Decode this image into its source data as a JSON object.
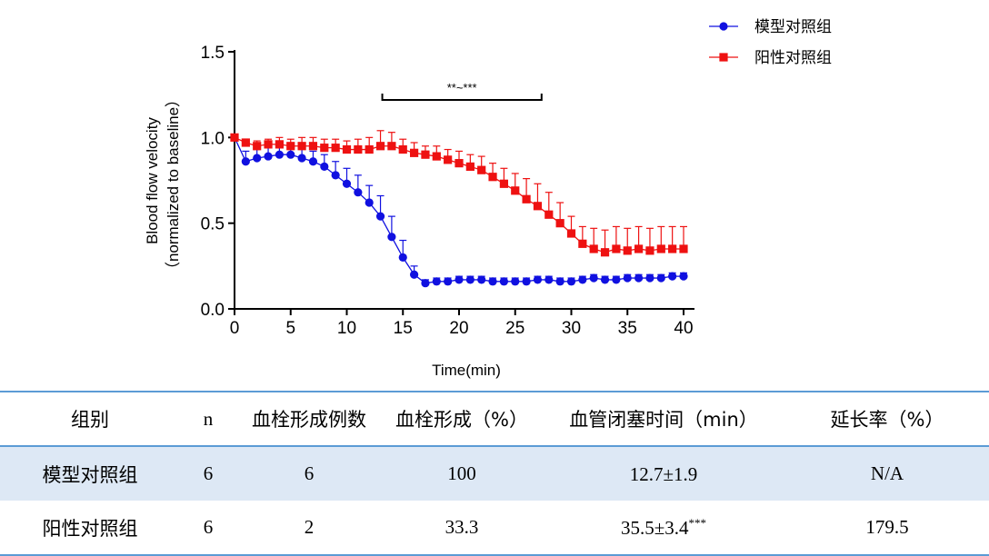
{
  "chart_data": {
    "type": "line",
    "xlabel": "Time(min)",
    "ylabel": "Blood flow velocity",
    "ylabel2": "（normalized to baseline）",
    "xlim": [
      0,
      40
    ],
    "ylim": [
      0,
      1.5
    ],
    "xticks": [
      0,
      5,
      10,
      15,
      20,
      25,
      30,
      35,
      40
    ],
    "yticks": [
      0.0,
      0.5,
      1.0,
      1.5
    ],
    "ytick_labels": [
      "0.0",
      "0.5",
      "1.0",
      "1.5"
    ],
    "legend_position": "top-right",
    "annotation": {
      "text": "**~***",
      "x_start": 13,
      "x_end": 28,
      "y": 1.23
    },
    "x": [
      0,
      1,
      2,
      3,
      4,
      5,
      6,
      7,
      8,
      9,
      10,
      11,
      12,
      13,
      14,
      15,
      16,
      17,
      18,
      19,
      20,
      21,
      22,
      23,
      24,
      25,
      26,
      27,
      28,
      29,
      30,
      31,
      32,
      33,
      34,
      35,
      36,
      37,
      38,
      39,
      40
    ],
    "series": [
      {
        "name": "模型对照组",
        "color": "#1010e0",
        "marker": "circle",
        "values": [
          1.0,
          0.86,
          0.88,
          0.89,
          0.9,
          0.9,
          0.88,
          0.86,
          0.83,
          0.78,
          0.73,
          0.68,
          0.62,
          0.54,
          0.42,
          0.3,
          0.2,
          0.15,
          0.16,
          0.16,
          0.17,
          0.17,
          0.17,
          0.16,
          0.16,
          0.16,
          0.16,
          0.17,
          0.17,
          0.16,
          0.16,
          0.17,
          0.18,
          0.17,
          0.17,
          0.18,
          0.18,
          0.18,
          0.18,
          0.19,
          0.19
        ],
        "errors": [
          0.0,
          0.06,
          0.05,
          0.05,
          0.05,
          0.05,
          0.06,
          0.06,
          0.07,
          0.08,
          0.09,
          0.1,
          0.1,
          0.12,
          0.12,
          0.1,
          0.05,
          0.02,
          0.02,
          0.02,
          0.02,
          0.02,
          0.02,
          0.02,
          0.02,
          0.02,
          0.02,
          0.02,
          0.02,
          0.02,
          0.02,
          0.02,
          0.02,
          0.02,
          0.02,
          0.02,
          0.02,
          0.02,
          0.02,
          0.02,
          0.02
        ]
      },
      {
        "name": "阳性对照组",
        "color": "#ee1111",
        "marker": "square",
        "values": [
          1.0,
          0.97,
          0.95,
          0.96,
          0.96,
          0.95,
          0.95,
          0.95,
          0.94,
          0.94,
          0.93,
          0.93,
          0.93,
          0.95,
          0.95,
          0.93,
          0.91,
          0.9,
          0.89,
          0.87,
          0.85,
          0.83,
          0.81,
          0.77,
          0.73,
          0.69,
          0.64,
          0.6,
          0.55,
          0.5,
          0.44,
          0.38,
          0.35,
          0.33,
          0.35,
          0.34,
          0.35,
          0.34,
          0.35,
          0.35,
          0.35
        ],
        "errors": [
          0.0,
          0.02,
          0.03,
          0.03,
          0.04,
          0.04,
          0.05,
          0.05,
          0.05,
          0.05,
          0.05,
          0.06,
          0.07,
          0.09,
          0.08,
          0.06,
          0.06,
          0.05,
          0.06,
          0.06,
          0.07,
          0.07,
          0.08,
          0.08,
          0.09,
          0.1,
          0.12,
          0.13,
          0.13,
          0.12,
          0.1,
          0.1,
          0.12,
          0.13,
          0.13,
          0.13,
          0.13,
          0.13,
          0.13,
          0.13,
          0.13
        ]
      }
    ]
  },
  "table": {
    "headers": [
      "组别",
      "n",
      "血栓形成例数",
      "血栓形成（%）",
      "血管闭塞时间（min）",
      "延长率（%）"
    ],
    "rows": [
      {
        "group": "模型对照组",
        "n": "6",
        "thrombus_count": "6",
        "thrombus_pct": "100",
        "occlusion_time": "12.7±1.9",
        "occlusion_sup": "",
        "extension_rate": "N/A"
      },
      {
        "group": "阳性对照组",
        "n": "6",
        "thrombus_count": "2",
        "thrombus_pct": "33.3",
        "occlusion_time": "35.5±3.4",
        "occlusion_sup": "***",
        "extension_rate": "179.5"
      }
    ]
  }
}
